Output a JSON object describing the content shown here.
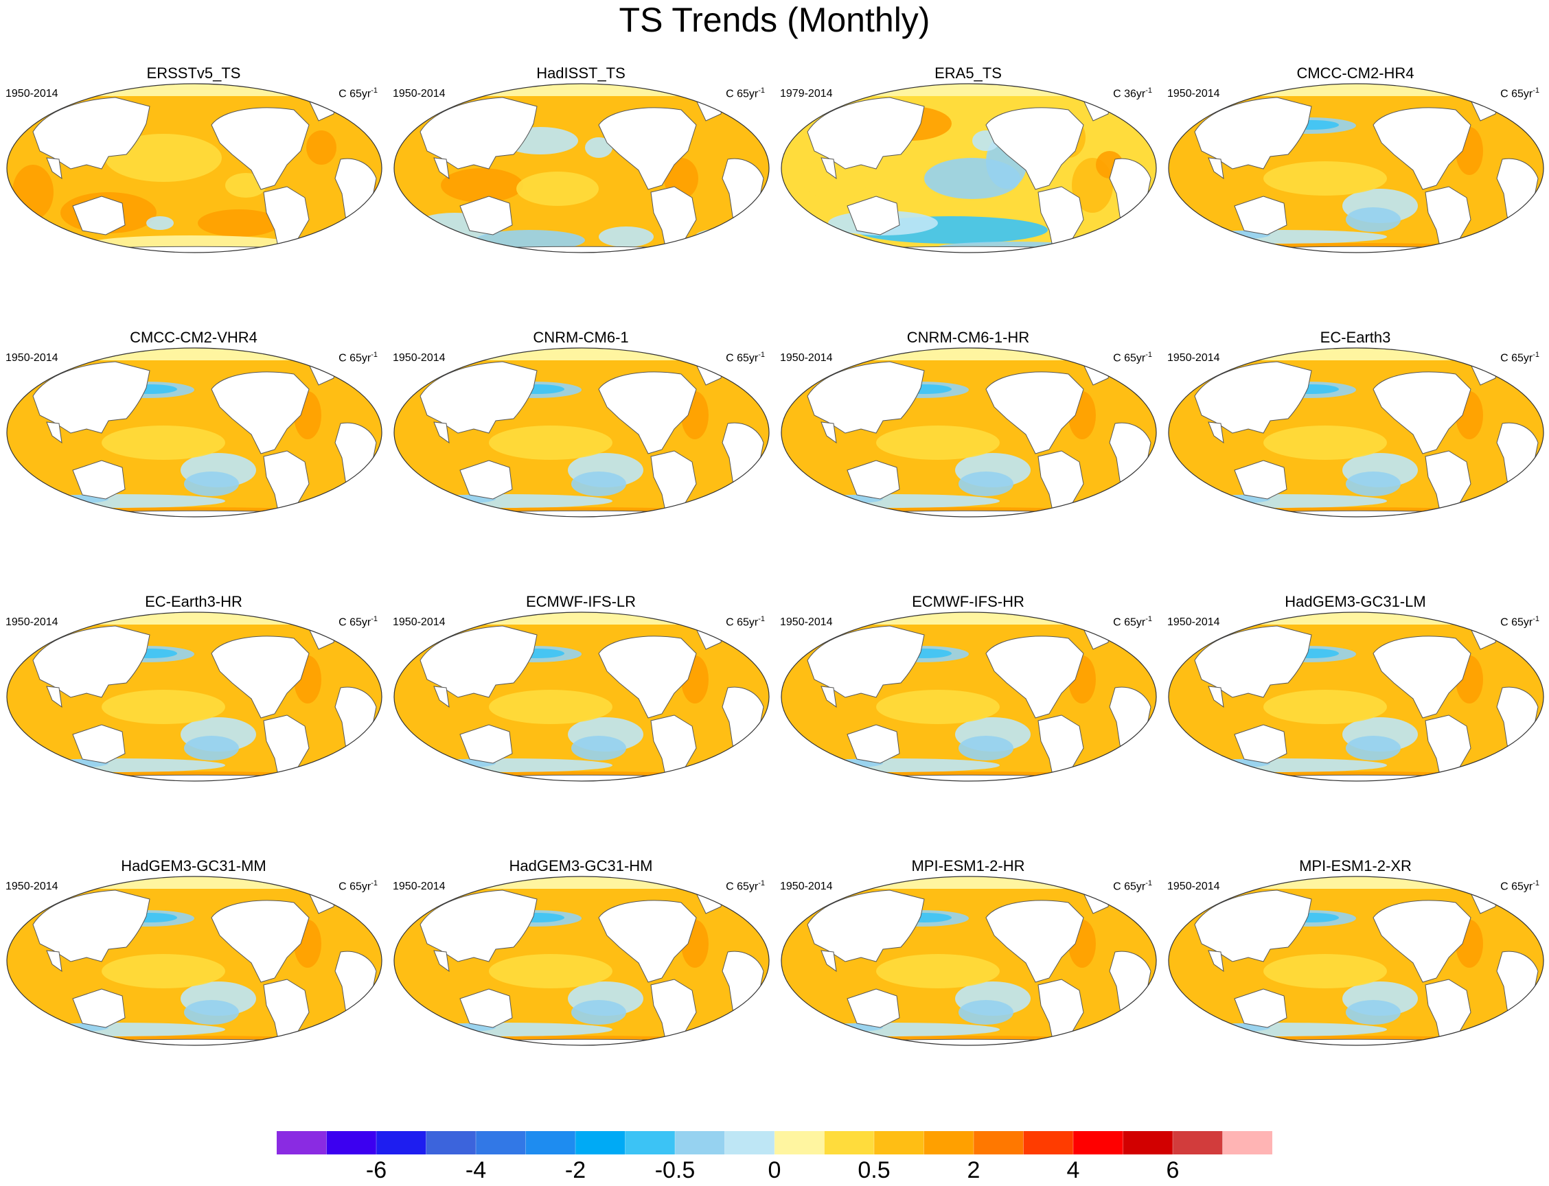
{
  "chart_data": {
    "type": "heatmap",
    "title": "TS Trends (Monthly)",
    "panels": [
      {
        "name": "ERSSTv5_TS",
        "period": "1950-2014",
        "units_prefix": "C 65yr",
        "units_exp": "-1",
        "pattern": "obs_smooth"
      },
      {
        "name": "HadISST_TS",
        "period": "1950-2014",
        "units_prefix": "C 65yr",
        "units_exp": "-1",
        "pattern": "obs_blue"
      },
      {
        "name": "ERA5_TS",
        "period": "1979-2014",
        "units_prefix": "C 36yr",
        "units_exp": "-1",
        "pattern": "era5"
      },
      {
        "name": "CMCC-CM2-HR4",
        "period": "1950-2014",
        "units_prefix": "C 65yr",
        "units_exp": "-1",
        "pattern": "model"
      },
      {
        "name": "CMCC-CM2-VHR4",
        "period": "1950-2014",
        "units_prefix": "C 65yr",
        "units_exp": "-1",
        "pattern": "model"
      },
      {
        "name": "CNRM-CM6-1",
        "period": "1950-2014",
        "units_prefix": "C 65yr",
        "units_exp": "-1",
        "pattern": "model"
      },
      {
        "name": "CNRM-CM6-1-HR",
        "period": "1950-2014",
        "units_prefix": "C 65yr",
        "units_exp": "-1",
        "pattern": "model"
      },
      {
        "name": "EC-Earth3",
        "period": "1950-2014",
        "units_prefix": "C 65yr",
        "units_exp": "-1",
        "pattern": "model"
      },
      {
        "name": "EC-Earth3-HR",
        "period": "1950-2014",
        "units_prefix": "C 65yr",
        "units_exp": "-1",
        "pattern": "model"
      },
      {
        "name": "ECMWF-IFS-LR",
        "period": "1950-2014",
        "units_prefix": "C 65yr",
        "units_exp": "-1",
        "pattern": "model"
      },
      {
        "name": "ECMWF-IFS-HR",
        "period": "1950-2014",
        "units_prefix": "C 65yr",
        "units_exp": "-1",
        "pattern": "model"
      },
      {
        "name": "HadGEM3-GC31-LM",
        "period": "1950-2014",
        "units_prefix": "C 65yr",
        "units_exp": "-1",
        "pattern": "model"
      },
      {
        "name": "HadGEM3-GC31-MM",
        "period": "1950-2014",
        "units_prefix": "C 65yr",
        "units_exp": "-1",
        "pattern": "model"
      },
      {
        "name": "HadGEM3-GC31-HM",
        "period": "1950-2014",
        "units_prefix": "C 65yr",
        "units_exp": "-1",
        "pattern": "model"
      },
      {
        "name": "MPI-ESM1-2-HR",
        "period": "1950-2014",
        "units_prefix": "C 65yr",
        "units_exp": "-1",
        "pattern": "model"
      },
      {
        "name": "MPI-ESM1-2-XR",
        "period": "1950-2014",
        "units_prefix": "C 65yr",
        "units_exp": "-1",
        "pattern": "model"
      }
    ],
    "colorbar": {
      "colors": [
        "#8a2be2",
        "#3c00f0",
        "#1e1ef0",
        "#3c64dc",
        "#3278e6",
        "#1e8cf0",
        "#00aaf5",
        "#3cc3f5",
        "#96d2f0",
        "#bee6f5",
        "#fff5a0",
        "#ffdc3c",
        "#ffbe14",
        "#ffa000",
        "#ff7800",
        "#ff3c00",
        "#ff0000",
        "#d20000",
        "#d23c3c",
        "#ffb4b4"
      ],
      "labels": [
        "-6",
        "-4",
        "-2",
        "-0.5",
        "0",
        "0.5",
        "2",
        "4",
        "6"
      ]
    },
    "grid": false
  }
}
